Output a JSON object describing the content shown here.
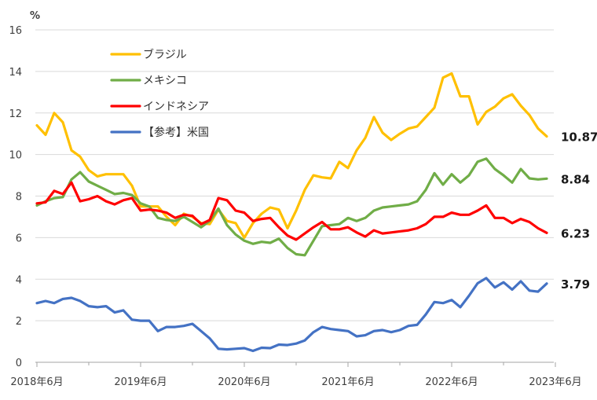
{
  "chart_data": {
    "type": "line",
    "unit_label": "%",
    "ylim": [
      0,
      16
    ],
    "y_ticks": [
      0,
      2,
      4,
      6,
      8,
      10,
      12,
      14,
      16
    ],
    "x_start": "2018-06",
    "x_tick_labels": [
      "2018年6月",
      "2019年6月",
      "2020年6月",
      "2021年6月",
      "2022年6月",
      "2023年6月"
    ],
    "grid": "horizontal",
    "legend_position": "top-left",
    "series": [
      {
        "name": "ブラジル",
        "color": "#ffc000",
        "end_label": "10.87",
        "values": [
          11.4,
          10.95,
          12.0,
          11.55,
          10.2,
          9.9,
          9.25,
          8.95,
          9.05,
          9.05,
          9.05,
          8.5,
          7.5,
          7.5,
          7.5,
          7.0,
          6.6,
          7.15,
          7.0,
          6.7,
          6.65,
          7.35,
          6.8,
          6.7,
          6.0,
          6.7,
          7.15,
          7.45,
          7.35,
          6.45,
          7.3,
          8.3,
          9.0,
          8.9,
          8.85,
          9.65,
          9.35,
          10.2,
          10.8,
          11.8,
          11.05,
          10.7,
          11.0,
          11.25,
          11.35,
          11.8,
          12.25,
          13.7,
          13.9,
          12.8,
          12.8,
          11.45,
          12.05,
          12.3,
          12.7,
          12.9,
          12.35,
          11.9,
          11.25,
          10.87
        ]
      },
      {
        "name": "メキシコ",
        "color": "#70ad47",
        "end_label": "8.84",
        "values": [
          7.55,
          7.75,
          7.9,
          7.95,
          8.8,
          9.15,
          8.7,
          8.5,
          8.3,
          8.1,
          8.15,
          8.05,
          7.65,
          7.5,
          6.95,
          6.85,
          6.8,
          7.0,
          6.75,
          6.5,
          6.8,
          7.4,
          6.6,
          6.15,
          5.85,
          5.7,
          5.8,
          5.75,
          5.95,
          5.5,
          5.2,
          5.15,
          5.85,
          6.55,
          6.6,
          6.65,
          6.95,
          6.8,
          6.95,
          7.3,
          7.45,
          7.5,
          7.55,
          7.6,
          7.75,
          8.3,
          9.1,
          8.55,
          9.05,
          8.65,
          9.0,
          9.65,
          9.8,
          9.3,
          9.0,
          8.65,
          9.3,
          8.85,
          8.8,
          8.84
        ]
      },
      {
        "name": "インドネシア",
        "color": "#ff0000",
        "end_label": "6.23",
        "values": [
          7.65,
          7.7,
          8.25,
          8.1,
          8.65,
          7.75,
          7.85,
          8.0,
          7.75,
          7.6,
          7.8,
          7.9,
          7.3,
          7.35,
          7.3,
          7.2,
          6.95,
          7.1,
          7.05,
          6.65,
          6.85,
          7.9,
          7.8,
          7.3,
          7.2,
          6.8,
          6.9,
          6.95,
          6.5,
          6.1,
          5.9,
          6.2,
          6.5,
          6.75,
          6.4,
          6.4,
          6.5,
          6.25,
          6.05,
          6.35,
          6.2,
          6.25,
          6.3,
          6.35,
          6.45,
          6.65,
          7.0,
          7.0,
          7.2,
          7.1,
          7.1,
          7.3,
          7.55,
          6.95,
          6.95,
          6.7,
          6.9,
          6.75,
          6.45,
          6.23
        ]
      },
      {
        "name": "【参考】米国",
        "color": "#4472c4",
        "end_label": "3.79",
        "values": [
          2.85,
          2.95,
          2.85,
          3.05,
          3.1,
          2.95,
          2.7,
          2.65,
          2.7,
          2.4,
          2.5,
          2.05,
          2.0,
          2.0,
          1.5,
          1.7,
          1.7,
          1.75,
          1.85,
          1.5,
          1.15,
          0.65,
          0.62,
          0.65,
          0.68,
          0.55,
          0.7,
          0.68,
          0.85,
          0.83,
          0.9,
          1.05,
          1.45,
          1.7,
          1.6,
          1.55,
          1.5,
          1.25,
          1.3,
          1.5,
          1.55,
          1.45,
          1.55,
          1.75,
          1.8,
          2.3,
          2.9,
          2.85,
          3.0,
          2.65,
          3.2,
          3.8,
          4.05,
          3.6,
          3.85,
          3.5,
          3.9,
          3.45,
          3.4,
          3.79
        ]
      }
    ]
  }
}
